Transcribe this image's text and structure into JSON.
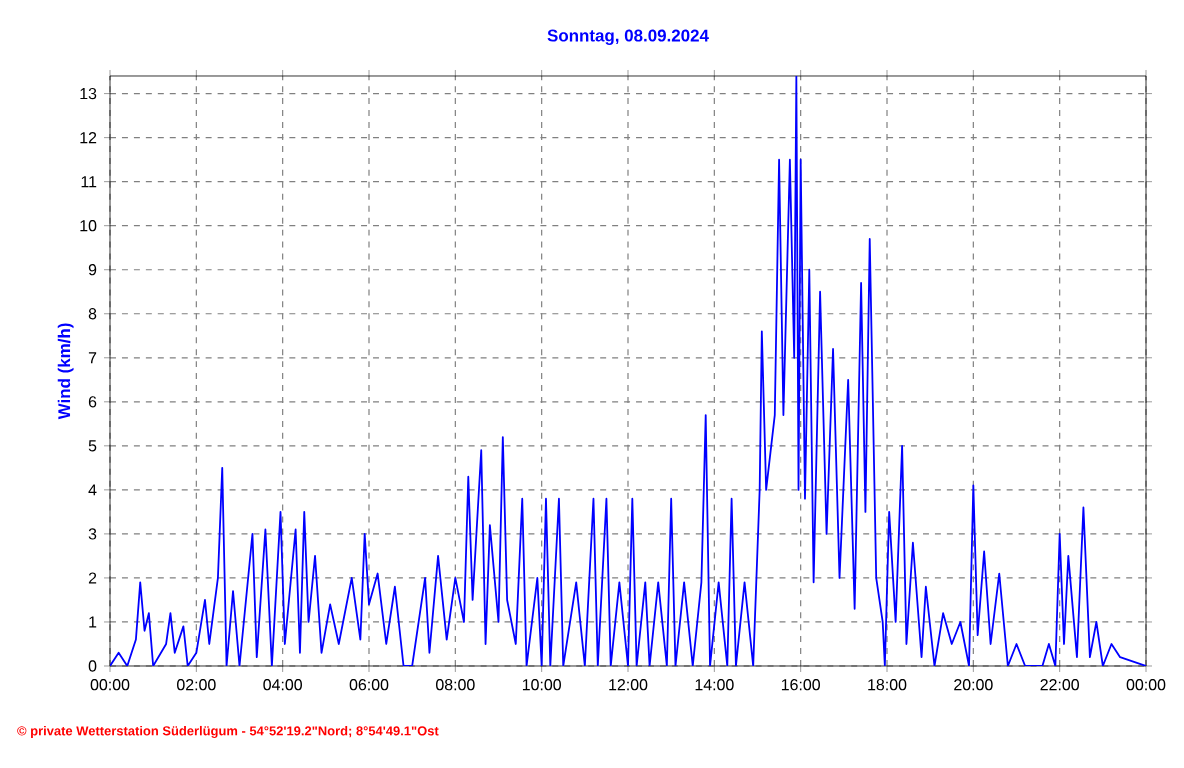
{
  "chart_data": {
    "type": "line",
    "title": "Sonntag, 08.09.2024",
    "ylabel": "Wind  (km/h)",
    "annotations": [
      "© private Wetterstation Süderlügum - 54°52'19.2\"Nord; 8°54'49.1\"Ost"
    ],
    "xlim": [
      0,
      24
    ],
    "ylim": [
      0,
      13.4
    ],
    "xticks": [
      {
        "value": 0,
        "label": "00:00"
      },
      {
        "value": 2,
        "label": "02:00"
      },
      {
        "value": 4,
        "label": "04:00"
      },
      {
        "value": 6,
        "label": "06:00"
      },
      {
        "value": 8,
        "label": "08:00"
      },
      {
        "value": 10,
        "label": "10:00"
      },
      {
        "value": 12,
        "label": "12:00"
      },
      {
        "value": 14,
        "label": "14:00"
      },
      {
        "value": 16,
        "label": "16:00"
      },
      {
        "value": 18,
        "label": "18:00"
      },
      {
        "value": 20,
        "label": "20:00"
      },
      {
        "value": 22,
        "label": "22:00"
      },
      {
        "value": 24,
        "label": "00:00"
      }
    ],
    "yticks": [
      0,
      1,
      2,
      3,
      4,
      5,
      6,
      7,
      8,
      9,
      10,
      11,
      12,
      13
    ],
    "grid": true,
    "marker": "none",
    "line_style": "solid",
    "x": [
      0.0,
      0.2,
      0.4,
      0.6,
      0.7,
      0.8,
      0.9,
      1.0,
      1.3,
      1.4,
      1.5,
      1.7,
      1.8,
      2.0,
      2.2,
      2.3,
      2.5,
      2.6,
      2.7,
      2.85,
      3.0,
      3.3,
      3.4,
      3.6,
      3.75,
      3.95,
      4.05,
      4.3,
      4.4,
      4.5,
      4.6,
      4.75,
      4.9,
      5.1,
      5.3,
      5.6,
      5.8,
      5.9,
      6.0,
      6.2,
      6.4,
      6.6,
      6.8,
      7.0,
      7.3,
      7.4,
      7.6,
      7.8,
      8.0,
      8.2,
      8.3,
      8.4,
      8.6,
      8.7,
      8.8,
      9.0,
      9.1,
      9.2,
      9.4,
      9.55,
      9.65,
      9.9,
      10.0,
      10.1,
      10.2,
      10.4,
      10.5,
      10.8,
      11.0,
      11.2,
      11.3,
      11.5,
      11.6,
      11.8,
      12.0,
      12.1,
      12.2,
      12.4,
      12.5,
      12.7,
      12.9,
      13.0,
      13.1,
      13.3,
      13.5,
      13.7,
      13.8,
      13.9,
      14.1,
      14.3,
      14.4,
      14.5,
      14.7,
      14.9,
      15.05,
      15.1,
      15.2,
      15.4,
      15.5,
      15.6,
      15.75,
      15.85,
      15.9,
      15.95,
      16.0,
      16.1,
      16.2,
      16.3,
      16.45,
      16.6,
      16.75,
      16.9,
      17.1,
      17.25,
      17.4,
      17.5,
      17.6,
      17.75,
      17.9,
      17.95,
      18.05,
      18.2,
      18.35,
      18.45,
      18.6,
      18.8,
      18.9,
      19.1,
      19.3,
      19.5,
      19.7,
      19.9,
      20.0,
      20.1,
      20.25,
      20.4,
      20.6,
      20.8,
      21.0,
      21.2,
      21.6,
      21.75,
      21.9,
      22.0,
      22.1,
      22.2,
      22.4,
      22.55,
      22.7,
      22.85,
      23.0,
      23.2,
      23.4,
      24.0
    ],
    "series": [
      {
        "color": "#0000ff",
        "values": [
          0,
          0.3,
          0,
          0.6,
          1.9,
          0.8,
          1.2,
          0,
          0.5,
          1.2,
          0.3,
          0.9,
          0,
          0.3,
          1.5,
          0.5,
          2.0,
          4.5,
          0,
          1.7,
          0,
          3.0,
          0.2,
          3.1,
          0,
          3.5,
          0.5,
          3.1,
          0.3,
          3.5,
          1.0,
          2.5,
          0.3,
          1.4,
          0.5,
          2.0,
          0.6,
          3.0,
          1.4,
          2.1,
          0.5,
          1.8,
          0,
          0,
          2.0,
          0.3,
          2.5,
          0.6,
          2.0,
          1.0,
          4.3,
          1.5,
          4.9,
          0.5,
          3.2,
          1.0,
          5.2,
          1.5,
          0.5,
          3.8,
          0,
          2.0,
          0,
          3.8,
          0,
          3.8,
          0,
          1.9,
          0,
          3.8,
          0,
          3.8,
          0,
          1.9,
          0,
          3.8,
          0,
          1.9,
          0,
          1.9,
          0,
          3.8,
          0,
          1.9,
          0,
          1.9,
          5.7,
          0,
          1.9,
          0,
          3.8,
          0,
          1.9,
          0,
          4.0,
          7.6,
          4.0,
          5.7,
          11.5,
          5.7,
          11.5,
          7.0,
          13.4,
          4.0,
          11.5,
          3.8,
          9.0,
          1.9,
          8.5,
          3.0,
          7.2,
          2.0,
          6.5,
          1.3,
          8.7,
          3.5,
          9.7,
          2.0,
          1.0,
          0,
          3.5,
          1.0,
          5.0,
          0.5,
          2.8,
          0.2,
          1.8,
          0,
          1.2,
          0.5,
          1.0,
          0,
          4.1,
          0.7,
          2.6,
          0.5,
          2.1,
          0,
          0.5,
          0,
          0,
          0.5,
          0,
          3.0,
          0.5,
          2.5,
          0.2,
          3.6,
          0.2,
          1.0,
          0,
          0.5,
          0.2,
          0
        ]
      }
    ]
  }
}
